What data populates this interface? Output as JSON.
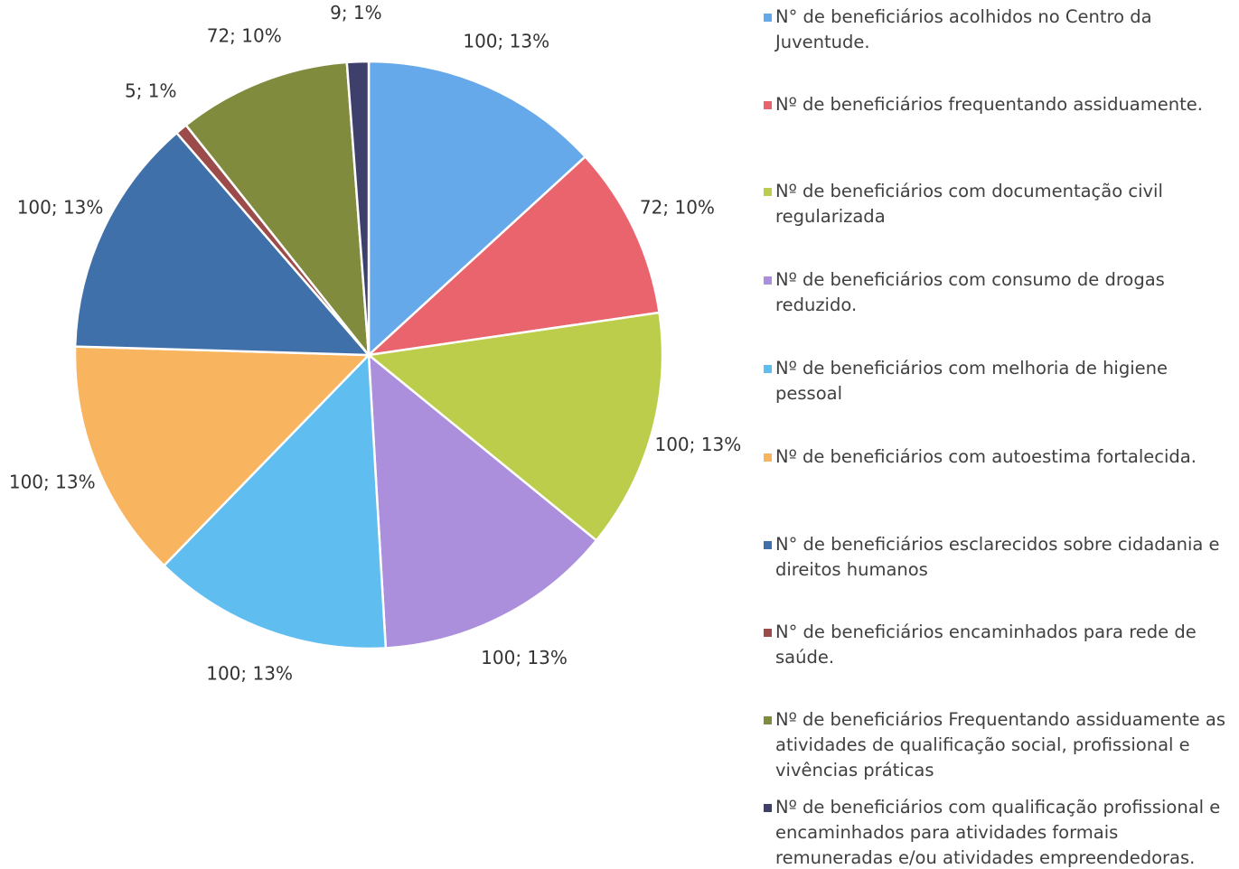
{
  "chart_data": {
    "type": "pie",
    "categories": [
      "N° de beneficiários acolhidos no Centro da Juventude.",
      "Nº de beneficiários frequentando assiduamente.",
      "Nº de beneficiários com documentação civil regularizada",
      "Nº de beneficiários com consumo de drogas reduzido.",
      "Nº de beneficiários com melhoria de higiene pessoal",
      "Nº de beneficiários com autoestima fortalecida.",
      "N° de beneficiários esclarecidos sobre cidadania e direitos humanos",
      "N° de beneficiários encaminhados para rede de saúde.",
      "Nº de beneficiários Frequentando assiduamente as atividades de qualificação social, profissional e vivências práticas",
      "Nº de beneficiários com qualificação profissional e encaminhados para atividades formais remuneradas e/ou atividades empreendedoras."
    ],
    "values": [
      100,
      72,
      100,
      100,
      100,
      100,
      100,
      5,
      72,
      9
    ],
    "value_labels": [
      "100; 13%",
      "72; 10%",
      "100; 13%",
      "100; 13%",
      "100; 13%",
      "100; 13%",
      "100; 13%",
      "5; 1%",
      "72; 10%",
      "9; 1%"
    ],
    "colors": [
      "#65a9ea",
      "#e9646c",
      "#bccd4c",
      "#ab8fdc",
      "#5fbdf0",
      "#f8b45e",
      "#3f70aa",
      "#9c4b4b",
      "#808b3e",
      "#3f3f6c"
    ]
  }
}
